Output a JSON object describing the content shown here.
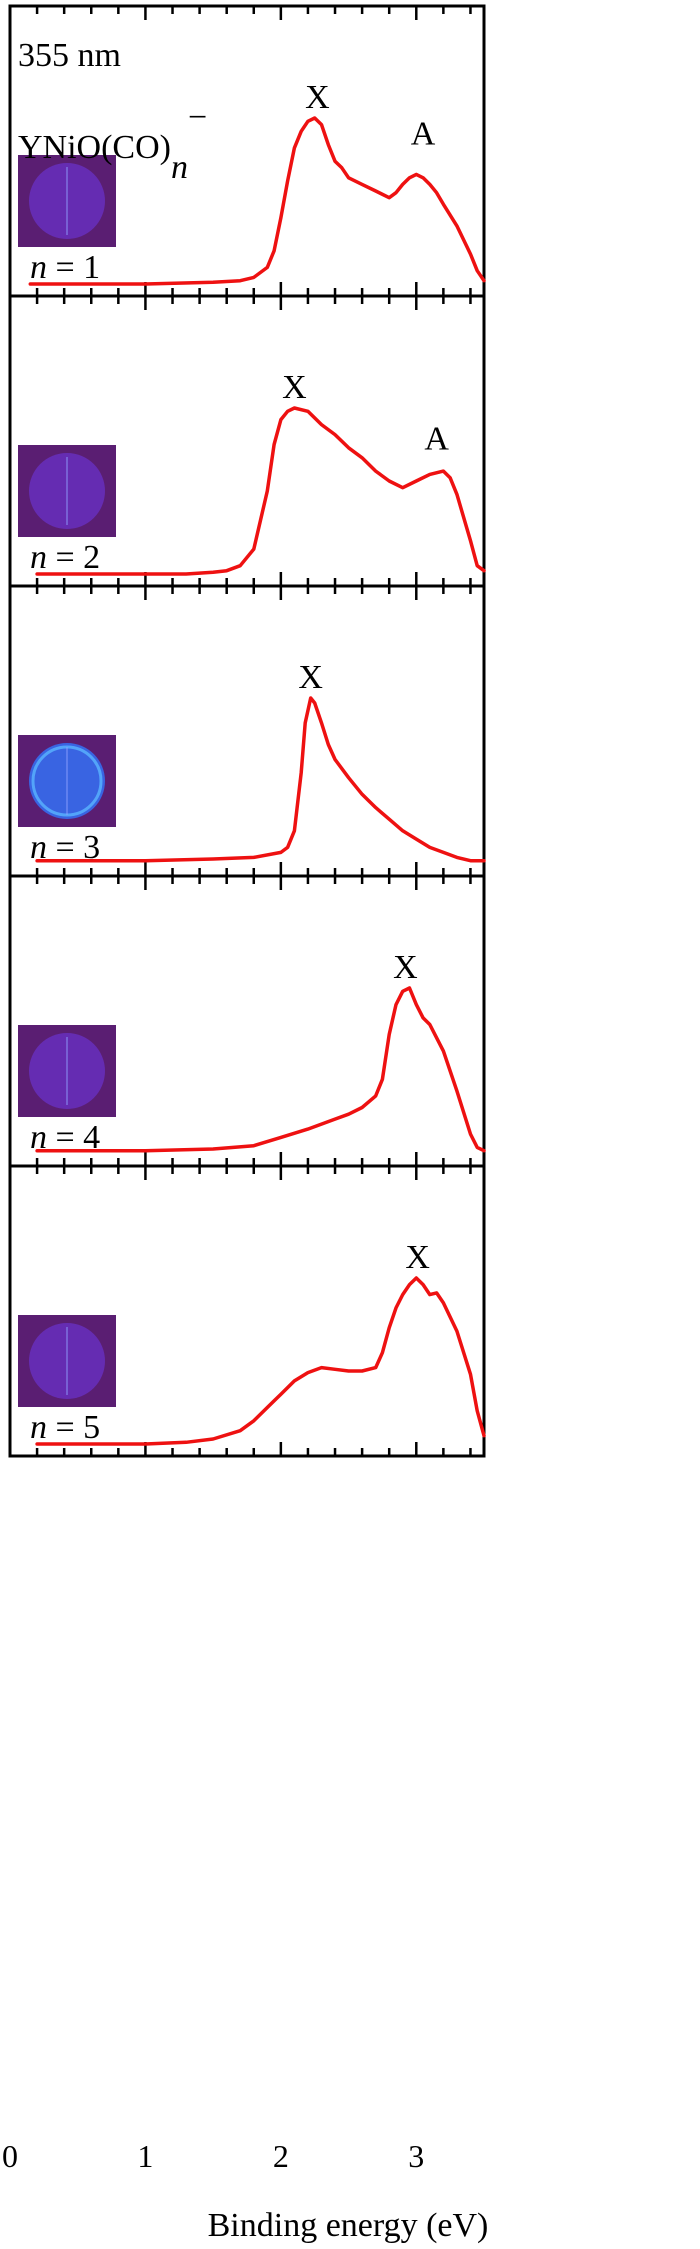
{
  "figure": {
    "wavelength_label": "355 nm",
    "species_base": "YNiO(CO)",
    "species_subscript": "n",
    "species_charge": "−",
    "xlabel": "Binding energy (eV)"
  },
  "colors": {
    "trace": "#ee1111",
    "frame": "#000000",
    "image_background": "#5a1e72",
    "image_disc": "#6a32c8",
    "image_disc_n3": "#3868e8"
  },
  "chart_data": {
    "type": "line",
    "xlabel": "Binding energy (eV)",
    "ylabel": "",
    "xlim": [
      0,
      3.5
    ],
    "x_ticks": [
      0,
      1,
      2,
      3
    ],
    "x_tick_labels": [
      "0",
      "1",
      "2",
      "3"
    ],
    "grid": false,
    "panels": [
      {
        "n_label": "n = 1",
        "n_var": "n",
        "n_rest": " = 1",
        "photoelectron_image": "velocity-map-image-icon",
        "peak_labels": [
          {
            "text": "X",
            "x": 2.27,
            "y": 1.0
          },
          {
            "text": "A",
            "x": 3.05,
            "y": 0.78
          }
        ],
        "series": [
          {
            "x": [
              0.15,
              0.5,
              1.0,
              1.5,
              1.7,
              1.8,
              1.9,
              1.95,
              2.0,
              2.05,
              2.1,
              2.15,
              2.2,
              2.25,
              2.3,
              2.35,
              2.4,
              2.45,
              2.5,
              2.6,
              2.7,
              2.8,
              2.85,
              2.9,
              2.95,
              3.0,
              3.05,
              3.1,
              3.15,
              3.2,
              3.3,
              3.4,
              3.45,
              3.5
            ],
            "y": [
              0.0,
              0.0,
              0.0,
              0.01,
              0.02,
              0.04,
              0.1,
              0.2,
              0.4,
              0.62,
              0.82,
              0.92,
              0.98,
              1.0,
              0.96,
              0.84,
              0.74,
              0.7,
              0.64,
              0.6,
              0.56,
              0.52,
              0.55,
              0.6,
              0.64,
              0.66,
              0.64,
              0.6,
              0.55,
              0.48,
              0.35,
              0.18,
              0.08,
              0.02
            ]
          }
        ]
      },
      {
        "n_label": "n = 2",
        "n_var": "n",
        "n_rest": " = 2",
        "photoelectron_image": "velocity-map-image-icon",
        "peak_labels": [
          {
            "text": "X",
            "x": 2.1,
            "y": 1.0
          },
          {
            "text": "A",
            "x": 3.15,
            "y": 0.69
          }
        ],
        "series": [
          {
            "x": [
              0.2,
              0.5,
              1.0,
              1.3,
              1.5,
              1.6,
              1.7,
              1.8,
              1.9,
              1.95,
              2.0,
              2.05,
              2.1,
              2.2,
              2.3,
              2.4,
              2.5,
              2.6,
              2.7,
              2.8,
              2.9,
              3.0,
              3.1,
              3.2,
              3.25,
              3.3,
              3.4,
              3.45,
              3.5
            ],
            "y": [
              0.0,
              0.0,
              0.0,
              0.0,
              0.01,
              0.02,
              0.05,
              0.15,
              0.5,
              0.78,
              0.93,
              0.98,
              1.0,
              0.98,
              0.9,
              0.84,
              0.76,
              0.7,
              0.62,
              0.56,
              0.52,
              0.56,
              0.6,
              0.62,
              0.58,
              0.48,
              0.2,
              0.05,
              0.02
            ]
          }
        ]
      },
      {
        "n_label": "n = 3",
        "n_var": "n",
        "n_rest": " = 3",
        "photoelectron_image": "velocity-map-image-icon",
        "peak_labels": [
          {
            "text": "X",
            "x": 2.22,
            "y": 1.0
          }
        ],
        "series": [
          {
            "x": [
              0.2,
              0.5,
              1.0,
              1.5,
              1.8,
              2.0,
              2.05,
              2.1,
              2.15,
              2.18,
              2.22,
              2.25,
              2.3,
              2.35,
              2.4,
              2.5,
              2.6,
              2.7,
              2.8,
              2.9,
              3.0,
              3.1,
              3.2,
              3.3,
              3.4,
              3.5
            ],
            "y": [
              0.02,
              0.02,
              0.02,
              0.03,
              0.04,
              0.07,
              0.1,
              0.2,
              0.55,
              0.85,
              1.0,
              0.97,
              0.85,
              0.72,
              0.63,
              0.52,
              0.42,
              0.34,
              0.27,
              0.2,
              0.15,
              0.1,
              0.07,
              0.04,
              0.02,
              0.02
            ]
          }
        ]
      },
      {
        "n_label": "n = 4",
        "n_var": "n",
        "n_rest": " = 4",
        "photoelectron_image": "velocity-map-image-icon",
        "peak_labels": [
          {
            "text": "X",
            "x": 2.92,
            "y": 1.0
          }
        ],
        "series": [
          {
            "x": [
              0.2,
              0.5,
              1.0,
              1.5,
              1.8,
              2.0,
              2.2,
              2.4,
              2.5,
              2.6,
              2.7,
              2.75,
              2.8,
              2.85,
              2.9,
              2.95,
              3.0,
              3.05,
              3.1,
              3.15,
              3.2,
              3.3,
              3.4,
              3.45,
              3.5
            ],
            "y": [
              0.02,
              0.02,
              0.02,
              0.03,
              0.05,
              0.1,
              0.15,
              0.21,
              0.24,
              0.28,
              0.35,
              0.45,
              0.72,
              0.9,
              0.98,
              1.0,
              0.9,
              0.82,
              0.78,
              0.7,
              0.62,
              0.38,
              0.12,
              0.04,
              0.02
            ]
          }
        ]
      },
      {
        "n_label": "n = 5",
        "n_var": "n",
        "n_rest": " = 5",
        "photoelectron_image": "velocity-map-image-icon",
        "peak_labels": [
          {
            "text": "X",
            "x": 3.01,
            "y": 1.0
          }
        ],
        "series": [
          {
            "x": [
              0.2,
              0.5,
              1.0,
              1.3,
              1.5,
              1.7,
              1.8,
              1.9,
              2.0,
              2.1,
              2.2,
              2.3,
              2.4,
              2.5,
              2.6,
              2.7,
              2.75,
              2.8,
              2.85,
              2.9,
              2.95,
              3.0,
              3.05,
              3.1,
              3.15,
              3.2,
              3.3,
              3.4,
              3.45,
              3.5
            ],
            "y": [
              0.0,
              0.0,
              0.0,
              0.01,
              0.03,
              0.08,
              0.14,
              0.22,
              0.3,
              0.38,
              0.43,
              0.46,
              0.45,
              0.44,
              0.44,
              0.46,
              0.55,
              0.7,
              0.82,
              0.9,
              0.96,
              1.0,
              0.96,
              0.9,
              0.91,
              0.85,
              0.68,
              0.42,
              0.2,
              0.05
            ]
          }
        ]
      }
    ]
  }
}
